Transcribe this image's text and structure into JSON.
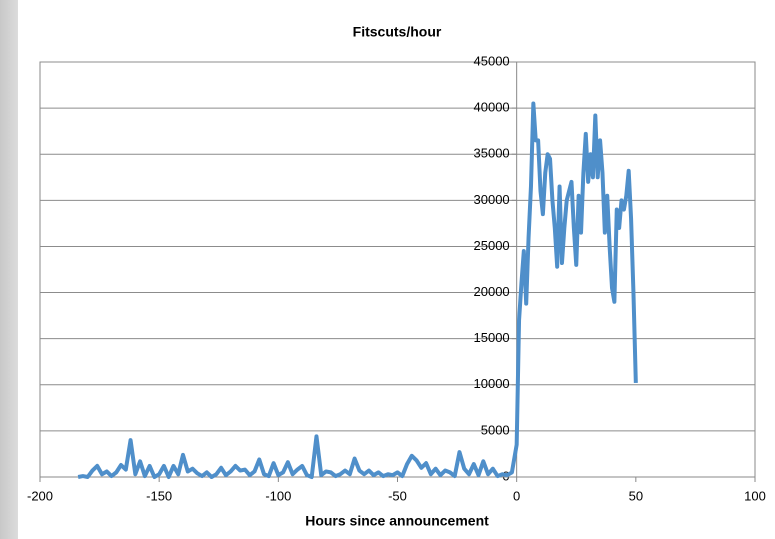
{
  "chart_data": {
    "type": "line",
    "title": "Fitscuts/hour",
    "x_label": "Hours since announcement",
    "x": [
      -184,
      -182,
      -180,
      -178,
      -176,
      -174,
      -172,
      -170,
      -168,
      -166,
      -164,
      -162,
      -160,
      -158,
      -156,
      -154,
      -152,
      -150,
      -148,
      -146,
      -144,
      -142,
      -140,
      -138,
      -136,
      -134,
      -132,
      -130,
      -128,
      -126,
      -124,
      -122,
      -120,
      -118,
      -116,
      -114,
      -112,
      -110,
      -108,
      -106,
      -104,
      -102,
      -100,
      -98,
      -96,
      -94,
      -92,
      -90,
      -88,
      -86,
      -84,
      -82,
      -80,
      -78,
      -76,
      -74,
      -72,
      -70,
      -68,
      -66,
      -64,
      -62,
      -60,
      -58,
      -56,
      -54,
      -52,
      -50,
      -48,
      -46,
      -44,
      -42,
      -40,
      -38,
      -36,
      -34,
      -32,
      -30,
      -28,
      -26,
      -24,
      -22,
      -20,
      -18,
      -16,
      -14,
      -12,
      -10,
      -8,
      -6,
      -4,
      -2,
      0,
      1,
      2,
      3,
      4,
      5,
      6,
      7,
      8,
      9,
      10,
      11,
      12,
      13,
      14,
      15,
      16,
      17,
      18,
      19,
      20,
      21,
      22,
      23,
      24,
      25,
      26,
      27,
      28,
      29,
      30,
      31,
      32,
      33,
      34,
      35,
      36,
      37,
      38,
      39,
      40,
      41,
      42,
      43,
      44,
      45,
      46,
      47,
      48,
      49,
      50
    ],
    "series": [
      {
        "name": "Fitscuts/hour",
        "color": "#4f8fca",
        "values": [
          0,
          100,
          0,
          700,
          1200,
          300,
          600,
          100,
          500,
          1300,
          800,
          4000,
          300,
          1700,
          100,
          1200,
          0,
          300,
          1200,
          0,
          1200,
          300,
          2400,
          600,
          900,
          400,
          100,
          500,
          0,
          300,
          1000,
          200,
          600,
          1200,
          700,
          800,
          200,
          600,
          1900,
          300,
          100,
          1500,
          200,
          500,
          1600,
          300,
          800,
          1200,
          200,
          0,
          4400,
          200,
          600,
          500,
          100,
          300,
          700,
          300,
          2000,
          700,
          300,
          700,
          200,
          500,
          100,
          300,
          200,
          500,
          100,
          1400,
          2300,
          1800,
          1000,
          1500,
          300,
          900,
          200,
          700,
          500,
          100,
          2700,
          900,
          300,
          1400,
          200,
          1700,
          300,
          900,
          100,
          300,
          200,
          500,
          3500,
          17000,
          21000,
          24500,
          18800,
          26000,
          31500,
          40500,
          36500,
          36500,
          31000,
          28500,
          33000,
          35000,
          34500,
          30000,
          27000,
          22800,
          31500,
          23200,
          27000,
          30000,
          31000,
          32000,
          27000,
          23000,
          30500,
          26500,
          33000,
          37200,
          32000,
          35000,
          32500,
          39200,
          32500,
          36500,
          33000,
          26500,
          30500,
          25000,
          20500,
          19000,
          29000,
          27000,
          30000,
          29000,
          30500,
          33200,
          28000,
          20000,
          10200
        ]
      }
    ],
    "xlim": [
      -200,
      100
    ],
    "xticks": [
      -200,
      -150,
      -100,
      -50,
      0,
      50,
      100
    ],
    "ylim": [
      0,
      45000
    ],
    "yticks": [
      0,
      5000,
      10000,
      15000,
      20000,
      25000,
      30000,
      35000,
      40000,
      45000
    ],
    "grid": true
  }
}
